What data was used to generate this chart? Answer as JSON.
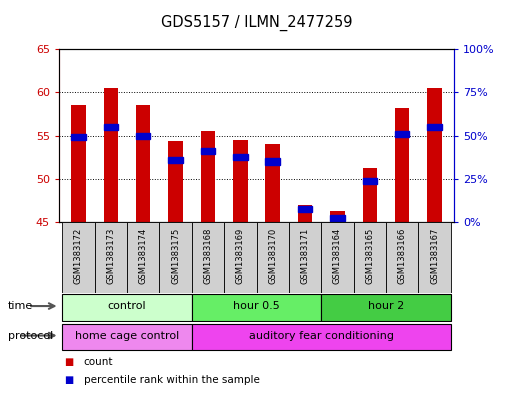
{
  "title": "GDS5157 / ILMN_2477259",
  "samples": [
    "GSM1383172",
    "GSM1383173",
    "GSM1383174",
    "GSM1383175",
    "GSM1383168",
    "GSM1383169",
    "GSM1383170",
    "GSM1383171",
    "GSM1383164",
    "GSM1383165",
    "GSM1383166",
    "GSM1383167"
  ],
  "count_values": [
    58.5,
    60.5,
    58.5,
    54.4,
    55.5,
    54.5,
    54.0,
    47.0,
    46.3,
    51.2,
    58.2,
    60.5
  ],
  "percentile_values": [
    54.8,
    56.0,
    55.0,
    52.2,
    53.2,
    52.5,
    52.0,
    46.5,
    45.5,
    49.8,
    55.2,
    56.0
  ],
  "ylim": [
    45,
    65
  ],
  "yticks_left": [
    45,
    50,
    55,
    60,
    65
  ],
  "yticks_right": [
    0,
    25,
    50,
    75,
    100
  ],
  "ylabel_left_color": "#cc0000",
  "ylabel_right_color": "#0000cc",
  "bar_color": "#cc0000",
  "percentile_color": "#0000cc",
  "time_groups": [
    {
      "label": "control",
      "start": 0,
      "end": 4,
      "color": "#ccffcc"
    },
    {
      "label": "hour 0.5",
      "start": 4,
      "end": 8,
      "color": "#66ee66"
    },
    {
      "label": "hour 2",
      "start": 8,
      "end": 12,
      "color": "#44cc44"
    }
  ],
  "protocol_groups": [
    {
      "label": "home cage control",
      "start": 0,
      "end": 4,
      "color": "#ee88ee"
    },
    {
      "label": "auditory fear conditioning",
      "start": 4,
      "end": 12,
      "color": "#ee44ee"
    }
  ],
  "bar_width": 0.45,
  "base_value": 45,
  "fig_width": 5.13,
  "fig_height": 3.93,
  "dpi": 100
}
